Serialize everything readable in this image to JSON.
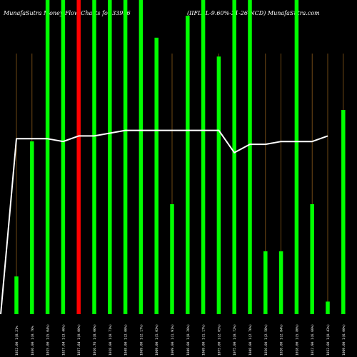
{
  "header": {
    "left": "MunafaSutra Money Flow Charts for 33956",
    "right": "(IIFLSL-9.60%-21-26-NCD) MunafaSutra.com"
  },
  "chart_data": {
    "type": "bar",
    "title": "MunafaSutra Money Flow Charts for 33956",
    "subtitle": "(IIFLSL-9.60%-21-26-NCD) MunafaSutra.com",
    "xlabel": "",
    "ylabel": "",
    "grid": false,
    "legend": "none",
    "colors": {
      "background": "#000000",
      "positive": "#00ff00",
      "negative": "#ff0000",
      "price_line": "#ffffff",
      "guide_line": "#8a5a1a"
    },
    "categories": [
      "1022.00 1(8.21%",
      "1036.00 1(0.76%",
      "1015.00 1(5.04%)",
      "1037.04 1(3.40%)",
      "1037.84 1(0.00%)",
      "1016.76 1(8.06%)",
      "1018.00 1(0.71%)",
      "1048.00 1(2.00%)",
      "1069.00 1(2.17%)",
      "1069.00 1(5.03%)",
      "1069.00 1(1.91%)",
      "1048.00 1(0.20%)",
      "1069.00 1(1.17%)",
      "1075.00 1(2.05%)",
      "1075.00 1(0.72%)",
      "1048.00 1(2.76%)",
      "1020.00 1(2.58%)",
      "1020.00 1(2.84%)",
      "1018.00 1(5.80%)",
      "1022.90 1(6.60%)",
      "1012.00 1(0.43%)",
      "1069.00 1(6.00%)"
    ],
    "bars": [
      {
        "value": 0.12,
        "direction": "up"
      },
      {
        "value": 0.55,
        "direction": "up"
      },
      {
        "value": 1.0,
        "direction": "up"
      },
      {
        "value": 1.0,
        "direction": "up"
      },
      {
        "value": 1.0,
        "direction": "down"
      },
      {
        "value": 1.0,
        "direction": "up"
      },
      {
        "value": 1.0,
        "direction": "up"
      },
      {
        "value": 1.0,
        "direction": "up"
      },
      {
        "value": 1.0,
        "direction": "up"
      },
      {
        "value": 0.88,
        "direction": "up"
      },
      {
        "value": 0.35,
        "direction": "up"
      },
      {
        "value": 0.95,
        "direction": "up"
      },
      {
        "value": 1.0,
        "direction": "up"
      },
      {
        "value": 0.82,
        "direction": "up"
      },
      {
        "value": 1.0,
        "direction": "up"
      },
      {
        "value": 1.0,
        "direction": "up"
      },
      {
        "value": 0.2,
        "direction": "up"
      },
      {
        "value": 0.2,
        "direction": "up"
      },
      {
        "value": 1.0,
        "direction": "up"
      },
      {
        "value": 0.35,
        "direction": "up"
      },
      {
        "value": 0.04,
        "direction": "up"
      },
      {
        "value": 0.65,
        "direction": "up"
      }
    ],
    "price_line": [
      0.0,
      0.63,
      0.63,
      0.63,
      0.62,
      0.64,
      0.64,
      0.65,
      0.66,
      0.66,
      0.66,
      0.66,
      0.66,
      0.66,
      0.66,
      0.58,
      0.61,
      0.61,
      0.62,
      0.62,
      0.62,
      0.64
    ]
  }
}
